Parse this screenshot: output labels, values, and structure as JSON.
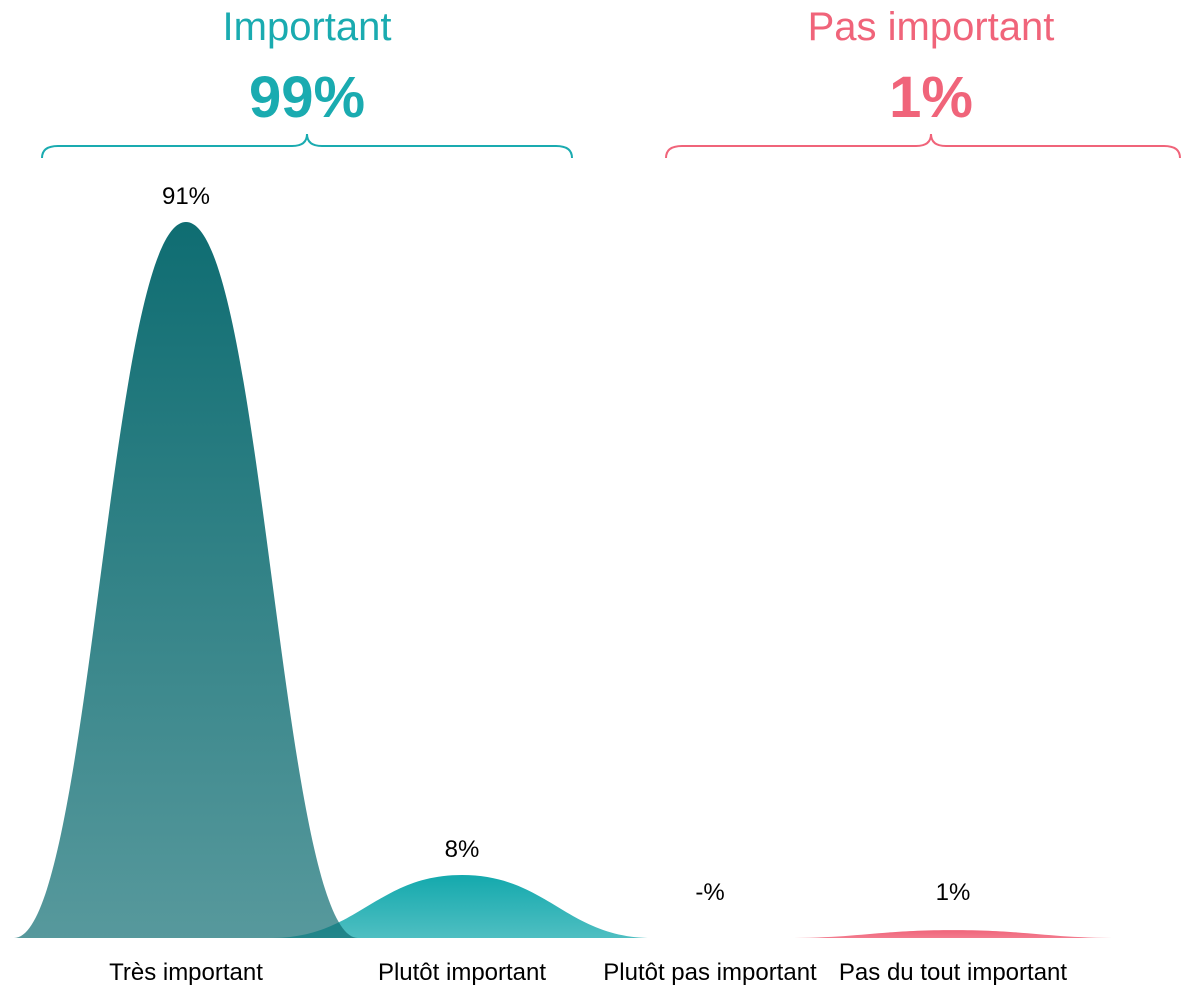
{
  "chart_data": {
    "type": "area",
    "categories": [
      "Très important",
      "Plutôt important",
      "Plutôt pas important",
      "Pas du tout important"
    ],
    "values": [
      91,
      8,
      null,
      1
    ],
    "value_labels": [
      "91%",
      "8%",
      "-%",
      "1%"
    ],
    "groups": [
      {
        "title": "Important",
        "total": "99%",
        "categories": [
          "Très important",
          "Plutôt important"
        ],
        "color": "#1aabb0"
      },
      {
        "title": "Pas important",
        "total": "1%",
        "categories": [
          "Plutôt pas important",
          "Pas du tout important"
        ],
        "color": "#f0647a"
      }
    ],
    "series_colors": [
      "#137074",
      "#1aabb0",
      "#1aabb0",
      "#f0647a"
    ],
    "grid": false,
    "legend": "none"
  }
}
